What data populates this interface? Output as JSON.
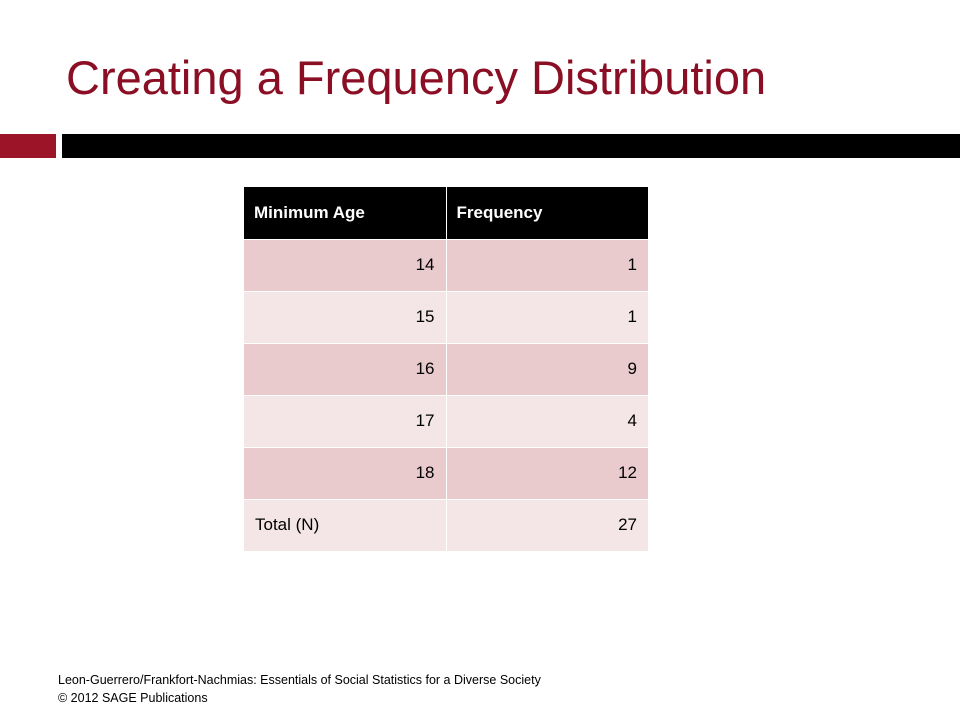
{
  "slide": {
    "title": "Creating a Frequency Distribution"
  },
  "table": {
    "headers": [
      "Minimum Age",
      "Frequency"
    ],
    "rows": [
      {
        "age": "14",
        "frequency": "1"
      },
      {
        "age": "15",
        "frequency": "1"
      },
      {
        "age": "16",
        "frequency": "9"
      },
      {
        "age": "17",
        "frequency": "4"
      },
      {
        "age": "18",
        "frequency": "12"
      }
    ],
    "total": {
      "label": "Total (N)",
      "value": "27"
    }
  },
  "footer": {
    "line1": "Leon-Guerrero/Frankfort-Nachmias: Essentials of Social Statistics for a Diverse Society",
    "line2": "© 2012 SAGE Publications"
  },
  "colors": {
    "title": "#8b0f24",
    "accent_bar": "#9b1428",
    "header_bg": "#000000",
    "row_dark": "#eacbcd",
    "row_light": "#f4e6e6"
  }
}
